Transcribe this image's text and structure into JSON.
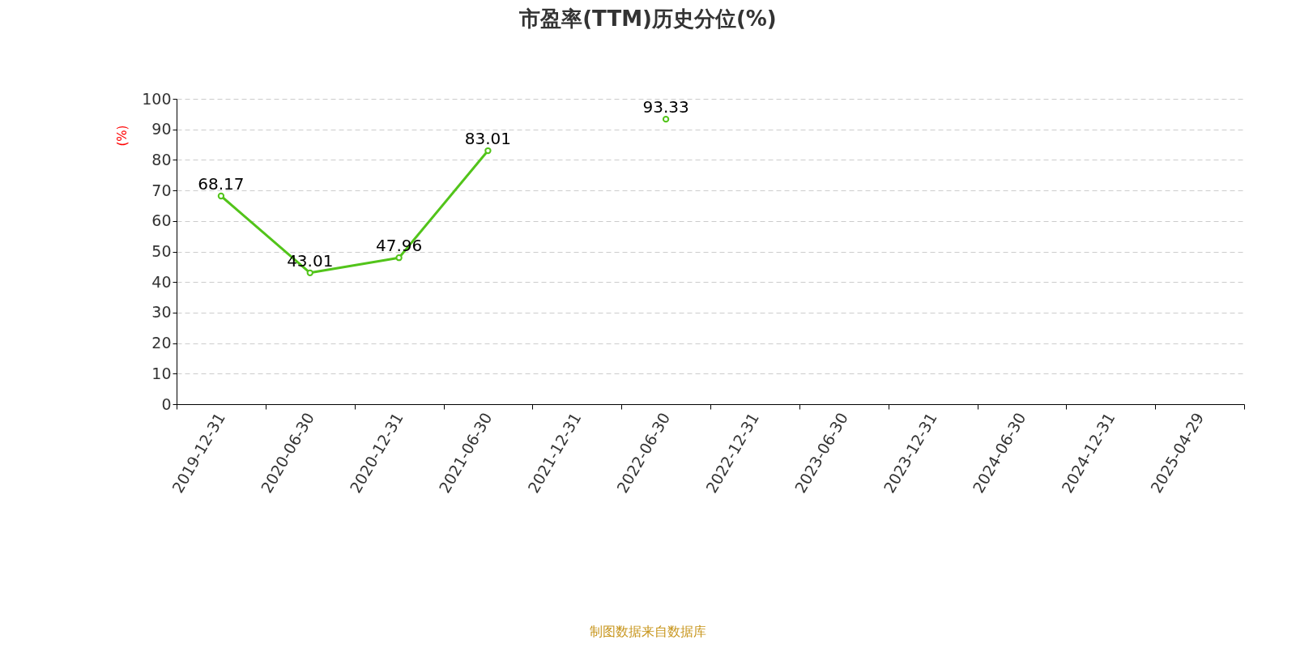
{
  "chart_data": {
    "type": "line",
    "title": "市盈率(TTM)历史分位(%)",
    "ylabel": "(%)",
    "categories": [
      "2019-12-31",
      "2020-06-30",
      "2020-12-31",
      "2021-06-30",
      "2021-12-31",
      "2022-06-30",
      "2022-12-31",
      "2023-06-30",
      "2023-12-31",
      "2024-06-30",
      "2024-12-31",
      "2025-04-29"
    ],
    "series": [
      {
        "color": "#52c41a",
        "values": [
          68.17,
          43.01,
          47.96,
          83.01,
          null,
          93.33,
          null,
          null,
          null,
          null,
          null,
          null
        ]
      }
    ],
    "ylim": [
      0,
      100
    ],
    "yticks": [
      0,
      10,
      20,
      30,
      40,
      50,
      60,
      70,
      80,
      90,
      100
    ],
    "grid": "y",
    "marker": "circle",
    "data_labels": true,
    "legend": false,
    "annotations": [
      "制图数据来自数据库"
    ]
  }
}
